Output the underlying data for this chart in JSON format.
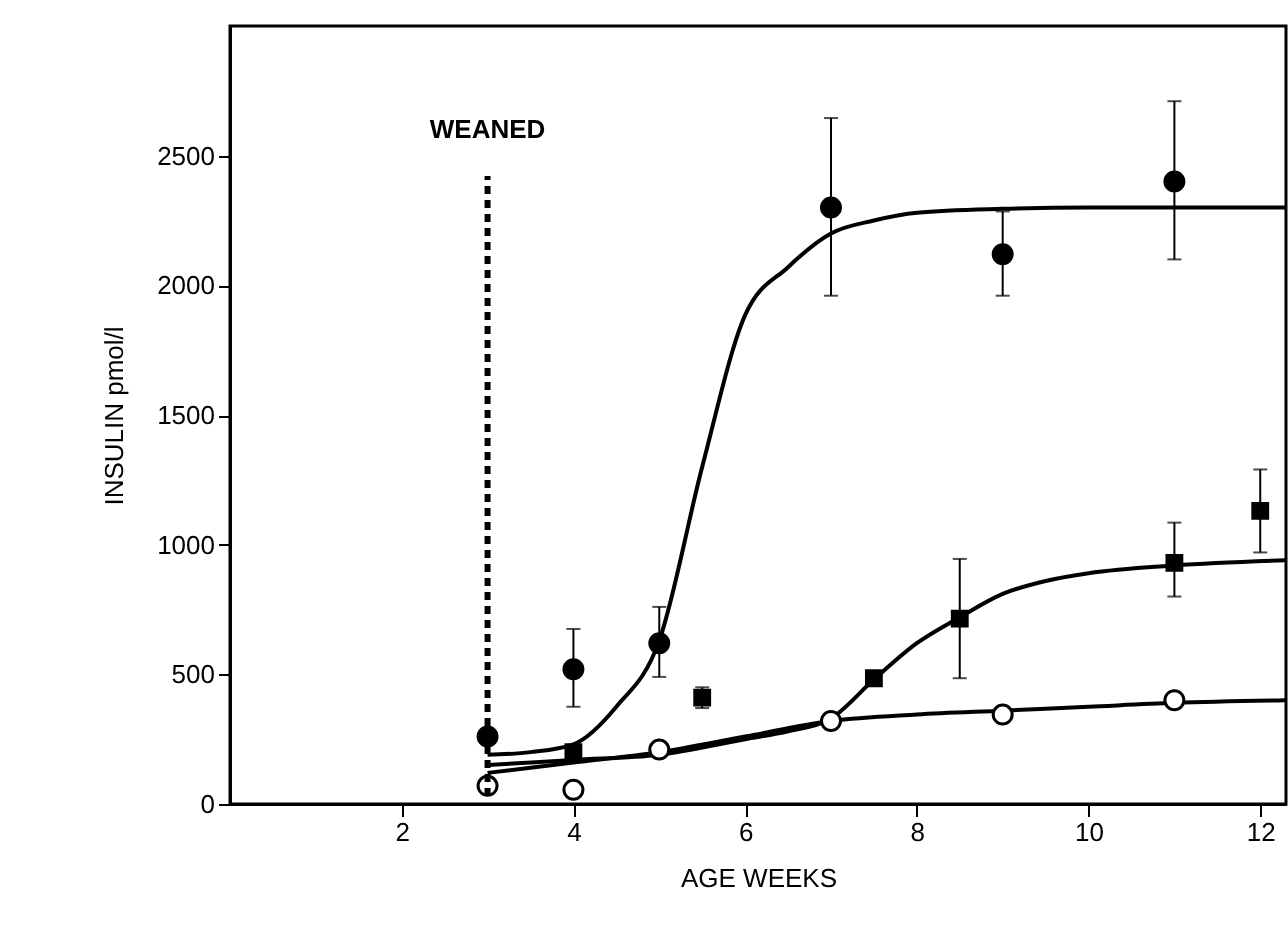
{
  "chart_data": {
    "type": "scatter",
    "xlabel": "AGE WEEKS",
    "ylabel": "INSULIN pmol/l",
    "xlim": [
      0,
      12.3
    ],
    "ylim": [
      0,
      3000
    ],
    "xticks": [
      2,
      4,
      6,
      8,
      10,
      12
    ],
    "yticks": [
      0,
      500,
      1000,
      1500,
      2000,
      2500
    ],
    "ref_lines": [
      {
        "axis": "x",
        "value": 3,
        "label": "WEANED",
        "line_style": "dashed",
        "color": "#000000"
      }
    ],
    "series": [
      {
        "type": "line",
        "color": "#000000",
        "marker": "none",
        "line_style": "solid",
        "x": [
          3,
          3.5,
          4,
          4.5,
          5,
          5.5,
          6,
          6.5,
          7,
          7.5,
          8,
          9,
          10,
          11,
          12.3
        ],
        "values": [
          190,
          200,
          230,
          375,
          630,
          1300,
          1885,
          2070,
          2200,
          2250,
          2280,
          2295,
          2300,
          2300,
          2300
        ]
      },
      {
        "type": "line",
        "color": "#000000",
        "marker": "none",
        "line_style": "solid",
        "x": [
          3,
          4,
          5,
          6,
          6.5,
          7,
          7.5,
          8,
          8.5,
          9,
          9.5,
          10,
          11,
          12.3
        ],
        "values": [
          150,
          170,
          190,
          250,
          280,
          330,
          480,
          620,
          720,
          810,
          860,
          890,
          920,
          940
        ]
      },
      {
        "type": "line",
        "color": "#000000",
        "marker": "none",
        "line_style": "solid",
        "x": [
          3,
          4,
          5,
          6,
          7,
          8,
          9,
          10,
          11,
          12.3
        ],
        "values": [
          120,
          160,
          200,
          260,
          320,
          345,
          360,
          375,
          390,
          400
        ]
      },
      {
        "color": "#000000",
        "marker": "circle",
        "x": [
          3,
          4,
          5,
          7,
          9,
          11
        ],
        "values": [
          260,
          520,
          620,
          2300,
          2120,
          2400
        ],
        "errors": [
          null,
          [
            375,
            675
          ],
          [
            490,
            760
          ],
          [
            1960,
            2645
          ],
          [
            1960,
            2285
          ],
          [
            2100,
            2710
          ]
        ]
      },
      {
        "color": "#000000",
        "marker": "square",
        "x": [
          4,
          5.5,
          7.5,
          8.5,
          11,
          12
        ],
        "values": [
          200,
          410,
          485,
          715,
          930,
          1130
        ],
        "errors": [
          null,
          [
            370,
            450
          ],
          null,
          [
            485,
            945
          ],
          [
            800,
            1085
          ],
          [
            970,
            1290
          ]
        ]
      },
      {
        "color": "#ffffff",
        "marker": "circle",
        "x": [
          3,
          4,
          5,
          7,
          9,
          11
        ],
        "values": [
          70,
          55,
          210,
          320,
          345,
          400
        ]
      }
    ]
  }
}
